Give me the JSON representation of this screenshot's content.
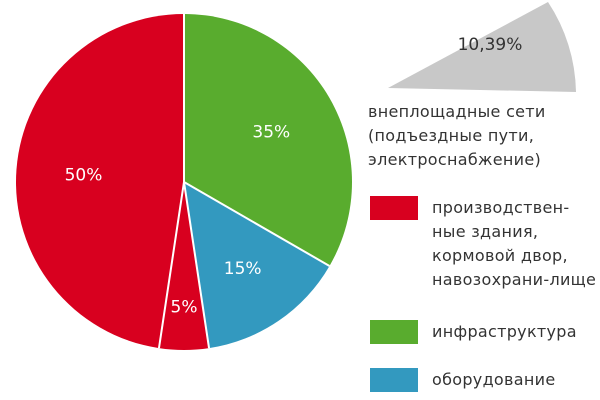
{
  "chart_data": {
    "type": "pie",
    "slices": [
      {
        "label": "производственные здания, кормовой двор, навозохранилище",
        "value": 50,
        "value_label": "50%",
        "color": "#d8001f"
      },
      {
        "label": "инфраструктура",
        "value": 35,
        "value_label": "35%",
        "color": "#59ac2e"
      },
      {
        "label": "оборудование",
        "value": 15,
        "value_label": "15%",
        "color": "#3399bf"
      },
      {
        "label": "",
        "value": 5,
        "value_label": "5%",
        "color": "#d8001f"
      }
    ],
    "callout": {
      "value_label": "10,39%",
      "color": "#c8c8c8",
      "text": "внеплощадные сети (подъездные пути, электроснабжение)"
    },
    "legend": [
      {
        "label": "производствен-ные здания, кормовой двор, навозохрани-лище",
        "color": "#d8001f"
      },
      {
        "label": "инфраструктура",
        "color": "#59ac2e"
      },
      {
        "label": "оборудование",
        "color": "#3399bf"
      }
    ],
    "legend_position": "right"
  }
}
